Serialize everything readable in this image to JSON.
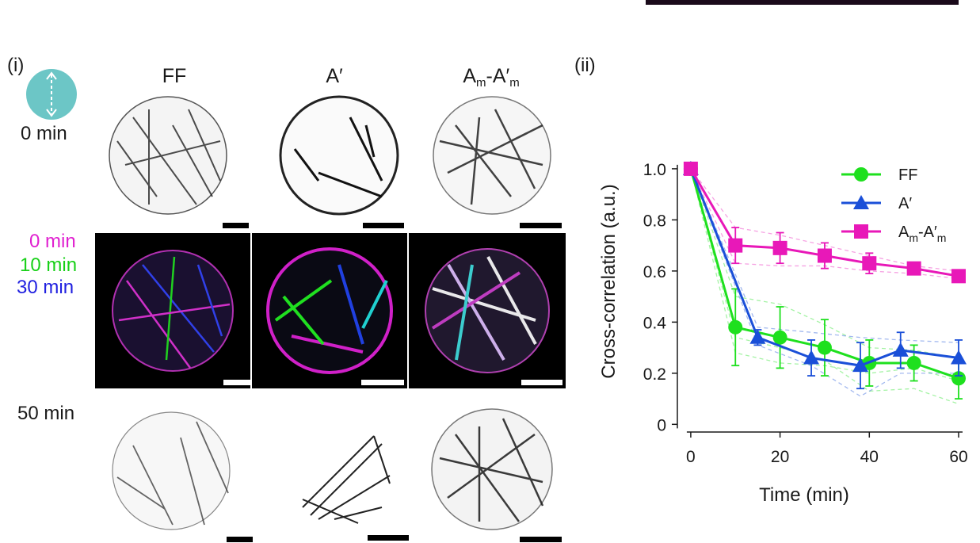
{
  "panel_i": {
    "label": "(i)",
    "columns": [
      "FF",
      "A′",
      "Aₘ-A′ₘ"
    ],
    "row_labels": {
      "top": "0 min",
      "middle": [
        "0 min",
        "10 min",
        "30 min"
      ],
      "bottom": "50 min"
    },
    "overlay_colors": [
      "#e020d0",
      "#18d018",
      "#2020e0"
    ]
  },
  "panel_ii": {
    "label": "(ii)"
  },
  "chart_data": {
    "type": "line",
    "xlabel": "Time (min)",
    "ylabel": "Cross-correlation (a.u.)",
    "xlim": [
      -3,
      60
    ],
    "ylim": [
      -0.03,
      1.04
    ],
    "xticks": [
      0,
      20,
      40,
      60
    ],
    "yticks": [
      0,
      0.2,
      0.4,
      0.6,
      0.8,
      1.0
    ],
    "ytick_labels": [
      "0",
      "0.2",
      "0.4",
      "0.6",
      "0.8",
      "1.0"
    ],
    "legend_position": "top-right",
    "grid": false,
    "series": [
      {
        "name": "FF",
        "color": "#1ee01e",
        "marker": "circle",
        "x": [
          0,
          10,
          20,
          30,
          40,
          50,
          60
        ],
        "y": [
          1.0,
          0.38,
          0.34,
          0.3,
          0.24,
          0.24,
          0.18
        ],
        "err": [
          0.0,
          0.15,
          0.12,
          0.11,
          0.09,
          0.07,
          0.08
        ],
        "individual": [
          [
            1.0,
            0.5,
            0.47,
            0.39,
            0.3,
            0.29,
            0.26
          ],
          [
            1.0,
            0.34,
            0.3,
            0.25,
            0.13,
            0.14,
            0.08
          ],
          [
            1.0,
            0.28,
            0.24,
            0.23,
            0.2,
            0.22,
            0.17
          ]
        ]
      },
      {
        "name": "A′",
        "color": "#1a4fd8",
        "marker": "triangle",
        "x": [
          0,
          15,
          27,
          38,
          47,
          60
        ],
        "y": [
          1.0,
          0.34,
          0.26,
          0.23,
          0.29,
          0.26
        ],
        "err": [
          0.0,
          0.03,
          0.07,
          0.09,
          0.07,
          0.07
        ],
        "individual": [
          [
            1.0,
            0.38,
            0.36,
            0.34,
            0.33,
            0.32
          ],
          [
            1.0,
            0.31,
            0.23,
            0.11,
            0.2,
            0.2
          ]
        ]
      },
      {
        "name": "Aₘ-A′ₘ",
        "color": "#e818b8",
        "marker": "square",
        "x": [
          0,
          10,
          20,
          30,
          40,
          50,
          60
        ],
        "y": [
          1.0,
          0.7,
          0.69,
          0.66,
          0.63,
          0.61,
          0.58
        ],
        "err": [
          0.0,
          0.07,
          0.06,
          0.05,
          0.04,
          0.02,
          0.02
        ],
        "individual": [
          [
            1.0,
            0.77,
            0.74,
            0.7,
            0.66,
            0.62,
            0.6
          ],
          [
            1.0,
            0.63,
            0.62,
            0.62,
            0.6,
            0.59,
            0.57
          ]
        ]
      }
    ]
  }
}
